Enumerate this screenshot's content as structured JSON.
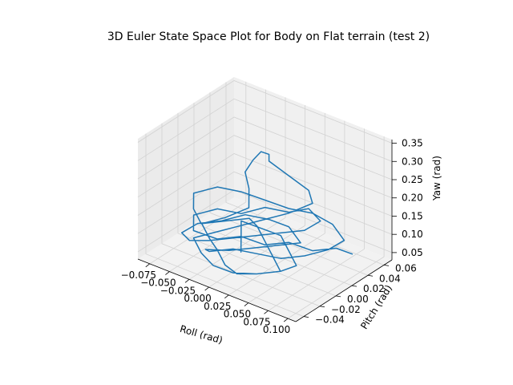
{
  "chart_data": {
    "type": "line",
    "projection": "3d",
    "title": "3D Euler State Space Plot for Body on Flat terrain (test 2)",
    "xlabel": "Roll (rad)",
    "ylabel": "Pitch (rad)",
    "zlabel": "Yaw (rad)",
    "xlim": [
      -0.09,
      0.11
    ],
    "ylim": [
      -0.05,
      0.07
    ],
    "zlim": [
      0.03,
      0.36
    ],
    "xticks": [
      "−0.075",
      "−0.050",
      "−0.025",
      "0.000",
      "0.025",
      "0.050",
      "0.075",
      "0.100"
    ],
    "yticks": [
      "−0.04",
      "−0.02",
      "0.00",
      "0.02",
      "0.04",
      "0.06"
    ],
    "zticks": [
      "0.05",
      "0.10",
      "0.15",
      "0.20",
      "0.25",
      "0.30",
      "0.35"
    ],
    "xtick_values": [
      -0.075,
      -0.05,
      -0.025,
      0.0,
      0.025,
      0.05,
      0.075,
      0.1
    ],
    "ytick_values": [
      -0.04,
      -0.02,
      0.0,
      0.02,
      0.04,
      0.06
    ],
    "ztick_values": [
      0.05,
      0.1,
      0.15,
      0.2,
      0.25,
      0.3,
      0.35
    ],
    "grid": true,
    "series": [
      {
        "color": "#1f77b4",
        "x": [
          0.085,
          0.07,
          0.05,
          0.03,
          0.01,
          -0.01,
          -0.03,
          -0.05,
          -0.06,
          -0.04,
          -0.02,
          0.0,
          0.02,
          0.04,
          0.06,
          0.05,
          0.03,
          0.01,
          -0.01,
          -0.03,
          -0.05,
          -0.07,
          -0.06,
          -0.04,
          -0.02,
          0.0,
          0.02,
          0.04,
          0.02,
          0.0,
          -0.02,
          -0.04,
          -0.03,
          -0.01,
          0.01,
          0.03,
          0.05,
          0.07,
          0.08,
          0.06,
          0.04,
          0.02,
          0.0,
          -0.02,
          -0.04,
          -0.06,
          -0.05,
          -0.03,
          -0.01,
          0.01,
          0.0,
          -0.01,
          -0.005,
          0.0,
          0.005,
          0.0,
          0.02,
          0.04,
          0.05,
          0.03,
          0.01,
          -0.01,
          -0.03,
          -0.05,
          -0.03,
          -0.01,
          0.01,
          0.03,
          0.05,
          0.03,
          0.01,
          -0.01,
          -0.03,
          -0.05,
          -0.07,
          -0.05,
          -0.03,
          -0.01,
          0.01,
          0.03,
          0.05,
          0.06,
          0.04,
          0.02,
          0.0,
          -0.02,
          -0.01,
          0.0
        ],
        "y": [
          0.045,
          0.04,
          0.03,
          0.02,
          0.01,
          0.0,
          -0.01,
          -0.02,
          -0.01,
          0.0,
          0.01,
          0.02,
          0.03,
          0.035,
          0.03,
          0.02,
          0.01,
          0.0,
          -0.01,
          -0.02,
          -0.025,
          -0.015,
          -0.005,
          0.005,
          0.015,
          0.025,
          0.03,
          0.025,
          0.015,
          0.005,
          -0.005,
          -0.015,
          -0.02,
          -0.01,
          0.0,
          0.01,
          0.02,
          0.03,
          0.04,
          0.045,
          0.04,
          0.03,
          0.02,
          0.01,
          0.0,
          -0.01,
          -0.02,
          -0.03,
          -0.02,
          -0.01,
          0.0,
          0.005,
          0.01,
          0.015,
          0.02,
          0.025,
          0.03,
          0.035,
          0.03,
          0.02,
          0.01,
          0.0,
          -0.01,
          -0.02,
          -0.03,
          -0.035,
          -0.03,
          -0.02,
          -0.01,
          0.0,
          0.01,
          0.02,
          0.03,
          0.02,
          0.01,
          0.0,
          -0.01,
          -0.02,
          -0.025,
          -0.02,
          -0.01,
          0.0,
          0.01,
          0.02,
          0.015,
          0.01,
          0.0,
          -0.01
        ],
        "z": [
          0.06,
          0.07,
          0.06,
          0.08,
          0.07,
          0.09,
          0.08,
          0.1,
          0.12,
          0.14,
          0.13,
          0.15,
          0.14,
          0.16,
          0.15,
          0.13,
          0.12,
          0.11,
          0.1,
          0.09,
          0.08,
          0.07,
          0.09,
          0.1,
          0.12,
          0.11,
          0.1,
          0.08,
          0.07,
          0.06,
          0.05,
          0.05,
          0.06,
          0.07,
          0.06,
          0.05,
          0.06,
          0.08,
          0.1,
          0.12,
          0.14,
          0.15,
          0.17,
          0.19,
          0.2,
          0.18,
          0.16,
          0.15,
          0.17,
          0.2,
          0.23,
          0.26,
          0.29,
          0.31,
          0.3,
          0.27,
          0.24,
          0.21,
          0.19,
          0.16,
          0.14,
          0.12,
          0.1,
          0.08,
          0.07,
          0.06,
          0.05,
          0.05,
          0.06,
          0.07,
          0.08,
          0.09,
          0.08,
          0.07,
          0.06,
          0.05,
          0.05,
          0.04,
          0.04,
          0.05,
          0.06,
          0.07,
          0.08,
          0.09,
          0.1,
          0.11,
          0.09,
          0.07
        ]
      }
    ]
  }
}
